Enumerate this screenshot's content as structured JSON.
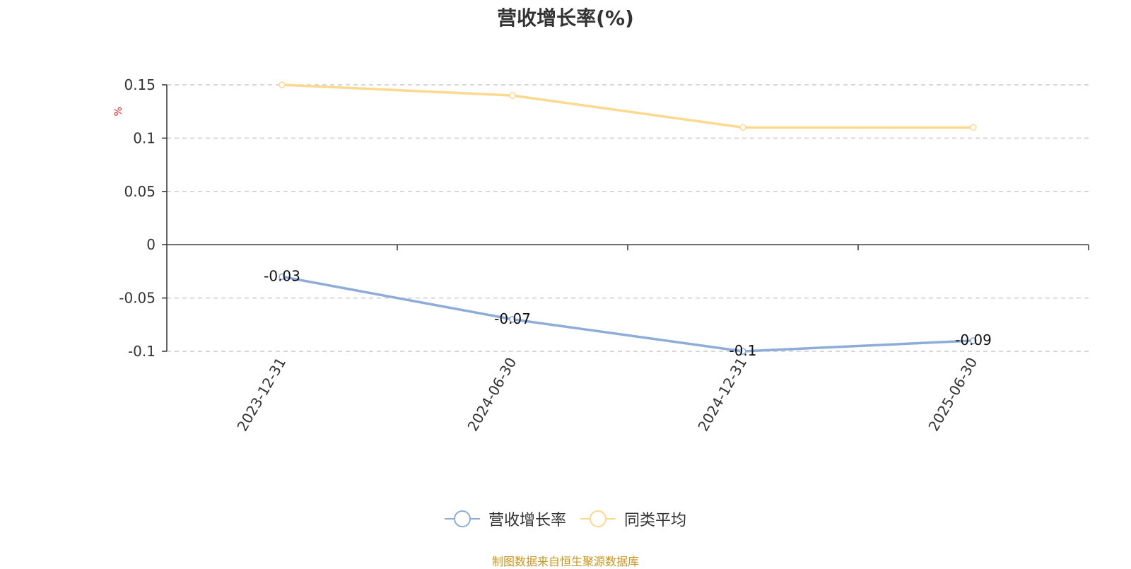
{
  "title": "营收增长率(%)",
  "source_note": "制图数据来自恒生聚源数据库",
  "colors": {
    "series_revenue": "#8eacd8",
    "series_peer": "#fdd98f",
    "unit_label": "#e02020",
    "source_note": "#c8961e",
    "grid": "#cccccc",
    "axis": "#333333"
  },
  "chart_data": {
    "type": "line",
    "title": "营收增长率(%)",
    "ylabel": "%",
    "xlabel": "",
    "x": [
      "2023-12-31",
      "2024-06-30",
      "2024-12-31",
      "2025-06-30"
    ],
    "ylim": [
      -0.1,
      0.15
    ],
    "yticks": [
      0.15,
      0.1,
      0.05,
      0,
      -0.05,
      -0.1
    ],
    "ytick_labels": [
      "0.15",
      "0.1",
      "0.05",
      "0",
      "-0.05",
      "-0.1"
    ],
    "grid": true,
    "legend_position": "bottom-center",
    "series": [
      {
        "name": "营收增长率",
        "values": [
          -0.03,
          -0.07,
          -0.1,
          -0.09
        ],
        "labels": [
          "-0.03",
          "-0.07",
          "-0.1",
          "-0.09"
        ],
        "show_labels": true
      },
      {
        "name": "同类平均",
        "values": [
          0.15,
          0.14,
          0.11,
          0.11
        ],
        "show_labels": false
      }
    ]
  }
}
